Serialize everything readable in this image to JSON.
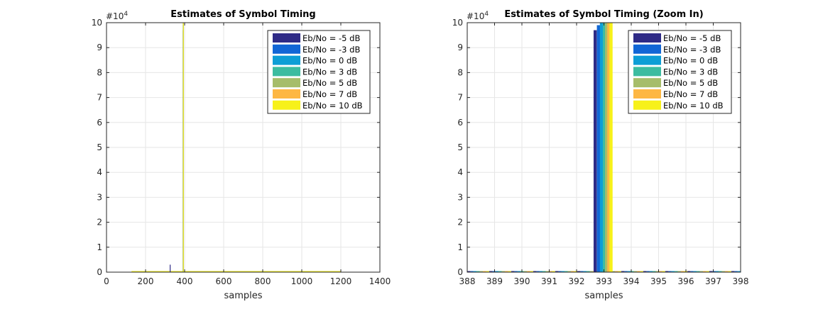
{
  "chart_data": [
    {
      "type": "bar",
      "title": "Estimates of Symbol Timing",
      "xlabel": "samples",
      "ylabel": "",
      "exponent_label": "#10",
      "exponent_power": "4",
      "xlim": [
        0,
        1400
      ],
      "ylim": [
        0,
        10
      ],
      "xticks": [
        0,
        200,
        400,
        600,
        800,
        1000,
        1200,
        1400
      ],
      "yticks": [
        0,
        1,
        2,
        3,
        4,
        5,
        6,
        7,
        8,
        9,
        10
      ],
      "grid": true,
      "legend_position": "top-right",
      "baseline_x_range": [
        128,
        1200
      ],
      "series": [
        {
          "name": "Eb/No = -5 dB",
          "color": "#2e2a86",
          "bars": [
            {
              "x": 326,
              "y": 0.3
            },
            {
              "x": 392.6,
              "y": 9.7
            }
          ]
        },
        {
          "name": "Eb/No = -3 dB",
          "color": "#1166d6",
          "bars": [
            {
              "x": 392.7,
              "y": 9.9
            }
          ]
        },
        {
          "name": "Eb/No = 0 dB",
          "color": "#0d9ed6",
          "bars": [
            {
              "x": 392.8,
              "y": 10
            }
          ]
        },
        {
          "name": "Eb/No = 3 dB",
          "color": "#3cbca0",
          "bars": [
            {
              "x": 393.0,
              "y": 10
            }
          ]
        },
        {
          "name": "Eb/No = 5 dB",
          "color": "#a6bd6a",
          "bars": [
            {
              "x": 393.1,
              "y": 10
            }
          ]
        },
        {
          "name": "Eb/No = 7 dB",
          "color": "#fdb743",
          "bars": [
            {
              "x": 393.2,
              "y": 10
            }
          ]
        },
        {
          "name": "Eb/No = 10 dB",
          "color": "#f7f11a",
          "bars": [
            {
              "x": 393.3,
              "y": 10
            }
          ]
        }
      ]
    },
    {
      "type": "bar",
      "title": "Estimates of Symbol Timing (Zoom In)",
      "xlabel": "samples",
      "ylabel": "",
      "exponent_label": "#10",
      "exponent_power": "4",
      "xlim": [
        388,
        398
      ],
      "ylim": [
        0,
        10
      ],
      "xticks": [
        388,
        389,
        390,
        391,
        392,
        393,
        394,
        395,
        396,
        397,
        398
      ],
      "yticks": [
        0,
        1,
        2,
        3,
        4,
        5,
        6,
        7,
        8,
        9,
        10
      ],
      "grid": true,
      "legend_position": "top-right",
      "bar_width": 0.115,
      "baseline_x_range": [
        388,
        398
      ],
      "series": [
        {
          "name": "Eb/No = -5 dB",
          "color": "#2e2a86",
          "bars": [
            {
              "x": 392.68,
              "y": 9.7
            }
          ]
        },
        {
          "name": "Eb/No = -3 dB",
          "color": "#1166d6",
          "bars": [
            {
              "x": 392.8,
              "y": 9.9
            }
          ]
        },
        {
          "name": "Eb/No = 0 dB",
          "color": "#0d9ed6",
          "bars": [
            {
              "x": 392.91,
              "y": 10
            }
          ]
        },
        {
          "name": "Eb/No = 3 dB",
          "color": "#3cbca0",
          "bars": [
            {
              "x": 393.02,
              "y": 10
            }
          ]
        },
        {
          "name": "Eb/No = 5 dB",
          "color": "#a6bd6a",
          "bars": [
            {
              "x": 393.1,
              "y": 10
            }
          ]
        },
        {
          "name": "Eb/No = 7 dB",
          "color": "#fdb743",
          "bars": [
            {
              "x": 393.18,
              "y": 10
            }
          ]
        },
        {
          "name": "Eb/No = 10 dB",
          "color": "#f7f11a",
          "bars": [
            {
              "x": 393.26,
              "y": 10
            }
          ]
        }
      ]
    }
  ]
}
